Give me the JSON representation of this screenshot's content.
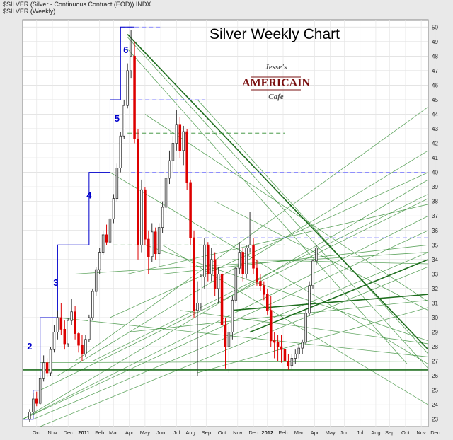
{
  "header": {
    "symbol_line": "$SILVER (Silver - Continuous Contract (EOD)) INDX",
    "series_line": "$SILVER (Weekly)"
  },
  "logo": {
    "line1": "Jesse's",
    "line2": "AMERICAIN",
    "line3": "Cafe"
  },
  "colors": {
    "up_candle": "#ffffff",
    "down_candle": "#dd0000",
    "wave_steps": "#0000cc",
    "trend_lines": "#2f8a2f",
    "dash_blue": "#8080ff"
  },
  "chart_data": {
    "type": "candlestick",
    "title": "Silver Weekly Chart",
    "ylim": [
      22.5,
      50.5
    ],
    "yticks": [
      23,
      24,
      25,
      26,
      27,
      28,
      29,
      30,
      31,
      32,
      33,
      34,
      35,
      36,
      37,
      38,
      39,
      40,
      41,
      42,
      43,
      44,
      45,
      46,
      47,
      48,
      49,
      50
    ],
    "xlim": [
      0,
      116
    ],
    "xticks": [
      {
        "label": "Oct",
        "x": 4
      },
      {
        "label": "Nov",
        "x": 8.5
      },
      {
        "label": "Dec",
        "x": 13
      },
      {
        "label": "2011",
        "x": 17.5
      },
      {
        "label": "Feb",
        "x": 22
      },
      {
        "label": "Mar",
        "x": 26
      },
      {
        "label": "Apr",
        "x": 30.5
      },
      {
        "label": "May",
        "x": 35
      },
      {
        "label": "Jun",
        "x": 39.5
      },
      {
        "label": "Jul",
        "x": 44
      },
      {
        "label": "Aug",
        "x": 48
      },
      {
        "label": "Sep",
        "x": 52.5
      },
      {
        "label": "Oct",
        "x": 57
      },
      {
        "label": "Nov",
        "x": 61.5
      },
      {
        "label": "Dec",
        "x": 66
      },
      {
        "label": "2012",
        "x": 70
      },
      {
        "label": "Feb",
        "x": 74.5
      },
      {
        "label": "Mar",
        "x": 79
      },
      {
        "label": "Apr",
        "x": 83.5
      },
      {
        "label": "May",
        "x": 88
      },
      {
        "label": "Jun",
        "x": 92
      },
      {
        "label": "Jul",
        "x": 96.5
      },
      {
        "label": "Aug",
        "x": 101
      },
      {
        "label": "Sep",
        "x": 105
      },
      {
        "label": "Oct",
        "x": 109.5
      },
      {
        "label": "Nov",
        "x": 114
      },
      {
        "label": "Dec",
        "x": 118
      }
    ],
    "wave_labels": [
      {
        "label": "2",
        "x": 2,
        "y": 27.8
      },
      {
        "label": "3",
        "x": 9.5,
        "y": 32.2
      },
      {
        "label": "4",
        "x": 19,
        "y": 38.2
      },
      {
        "label": "5",
        "x": 27,
        "y": 43.5
      },
      {
        "label": "6",
        "x": 29.5,
        "y": 48.2
      }
    ],
    "wave_steps": [
      [
        0,
        23
      ],
      [
        3,
        23
      ],
      [
        3,
        25
      ],
      [
        5,
        25
      ],
      [
        5,
        30
      ],
      [
        10,
        30
      ],
      [
        10,
        35
      ],
      [
        19,
        35
      ],
      [
        19,
        40
      ],
      [
        25,
        40
      ],
      [
        25,
        45
      ],
      [
        28,
        45
      ],
      [
        28,
        50
      ],
      [
        32,
        50
      ]
    ],
    "candles": [
      [
        23.0,
        23.7,
        22.8,
        23.5
      ],
      [
        23.5,
        24.8,
        23.3,
        24.4
      ],
      [
        24.4,
        24.9,
        23.9,
        24.1
      ],
      [
        24.1,
        26.0,
        24.0,
        25.8
      ],
      [
        25.8,
        27.4,
        25.6,
        26.9
      ],
      [
        26.9,
        27.2,
        25.9,
        26.2
      ],
      [
        26.2,
        28.0,
        26.0,
        27.8
      ],
      [
        27.8,
        29.5,
        27.6,
        29.0
      ],
      [
        29.0,
        30.5,
        28.5,
        30.0
      ],
      [
        30.0,
        31.0,
        28.8,
        29.2
      ],
      [
        29.2,
        29.8,
        27.8,
        28.2
      ],
      [
        28.2,
        30.0,
        28.0,
        29.8
      ],
      [
        29.8,
        31.3,
        29.5,
        30.4
      ],
      [
        30.4,
        30.8,
        28.5,
        28.9
      ],
      [
        28.9,
        29.0,
        27.6,
        28.1
      ],
      [
        28.1,
        28.8,
        27.0,
        27.5
      ],
      [
        27.5,
        28.8,
        27.3,
        28.5
      ],
      [
        28.5,
        30.2,
        28.3,
        30.0
      ],
      [
        30.0,
        32.0,
        29.8,
        31.8
      ],
      [
        31.8,
        33.5,
        31.5,
        33.3
      ],
      [
        33.3,
        34.8,
        33.0,
        34.5
      ],
      [
        34.5,
        36.0,
        34.3,
        35.7
      ],
      [
        35.7,
        36.4,
        35.0,
        35.2
      ],
      [
        35.2,
        37.0,
        35.0,
        36.8
      ],
      [
        36.8,
        38.5,
        36.5,
        38.2
      ],
      [
        38.2,
        40.6,
        38.0,
        40.3
      ],
      [
        40.3,
        42.8,
        40.0,
        42.5
      ],
      [
        42.5,
        45.0,
        42.3,
        44.6
      ],
      [
        44.6,
        47.5,
        44.4,
        47.0
      ],
      [
        47.0,
        49.8,
        46.5,
        48.0
      ],
      [
        48.0,
        49.0,
        42.0,
        42.3
      ],
      [
        42.3,
        43.0,
        34.0,
        35.0
      ],
      [
        35.0,
        39.5,
        34.5,
        38.8
      ],
      [
        38.8,
        39.0,
        35.0,
        35.4
      ],
      [
        35.4,
        36.0,
        33.0,
        34.2
      ],
      [
        34.2,
        36.5,
        33.8,
        35.9
      ],
      [
        35.9,
        36.2,
        34.0,
        34.4
      ],
      [
        34.4,
        36.5,
        33.5,
        36.2
      ],
      [
        36.2,
        38.0,
        35.8,
        37.6
      ],
      [
        37.6,
        39.8,
        37.2,
        39.6
      ],
      [
        39.6,
        41.5,
        39.2,
        40.8
      ],
      [
        40.8,
        42.5,
        40.0,
        42.0
      ],
      [
        42.0,
        44.3,
        41.5,
        43.3
      ],
      [
        43.3,
        43.8,
        41.0,
        41.5
      ],
      [
        41.5,
        43.2,
        40.5,
        42.8
      ],
      [
        42.8,
        43.0,
        38.8,
        39.3
      ],
      [
        39.3,
        39.5,
        35.0,
        35.5
      ],
      [
        35.5,
        36.0,
        30.0,
        30.5
      ],
      [
        30.5,
        32.5,
        26.0,
        31.0
      ],
      [
        31.0,
        33.0,
        30.5,
        32.8
      ],
      [
        32.8,
        35.5,
        32.0,
        35.0
      ],
      [
        35.0,
        35.2,
        32.5,
        33.0
      ],
      [
        33.0,
        34.8,
        32.5,
        34.0
      ],
      [
        34.0,
        34.5,
        31.5,
        32.0
      ],
      [
        32.0,
        33.5,
        31.0,
        33.0
      ],
      [
        33.0,
        33.2,
        29.0,
        29.5
      ],
      [
        29.5,
        30.0,
        26.5,
        28.0
      ],
      [
        28.0,
        29.5,
        26.2,
        29.0
      ],
      [
        29.0,
        31.5,
        28.5,
        31.2
      ],
      [
        31.2,
        33.5,
        31.0,
        33.4
      ],
      [
        33.4,
        35.2,
        33.0,
        34.5
      ],
      [
        34.5,
        34.8,
        32.5,
        33.0
      ],
      [
        33.0,
        35.0,
        32.7,
        34.8
      ],
      [
        34.8,
        37.3,
        34.5,
        35.0
      ],
      [
        35.0,
        35.5,
        33.0,
        33.4
      ],
      [
        33.4,
        34.0,
        32.2,
        32.5
      ],
      [
        32.5,
        33.0,
        31.8,
        32.2
      ],
      [
        32.2,
        32.5,
        31.2,
        31.6
      ],
      [
        31.6,
        32.0,
        30.2,
        30.5
      ],
      [
        30.5,
        31.5,
        28.0,
        28.4
      ],
      [
        28.4,
        29.0,
        27.2,
        28.3
      ],
      [
        28.3,
        28.8,
        27.0,
        28.0
      ],
      [
        28.0,
        28.8,
        26.9,
        27.8
      ],
      [
        27.8,
        28.2,
        26.5,
        27.0
      ],
      [
        27.0,
        27.5,
        26.4,
        26.7
      ],
      [
        26.7,
        27.5,
        26.5,
        27.2
      ],
      [
        27.2,
        27.8,
        26.8,
        27.5
      ],
      [
        27.5,
        28.2,
        27.2,
        27.9
      ],
      [
        27.9,
        28.5,
        27.5,
        28.3
      ],
      [
        28.3,
        30.5,
        28.1,
        30.3
      ],
      [
        30.3,
        32.5,
        30.1,
        32.2
      ],
      [
        32.2,
        34.0,
        32.0,
        33.9
      ],
      [
        33.9,
        35.0,
        33.6,
        34.8
      ]
    ]
  }
}
